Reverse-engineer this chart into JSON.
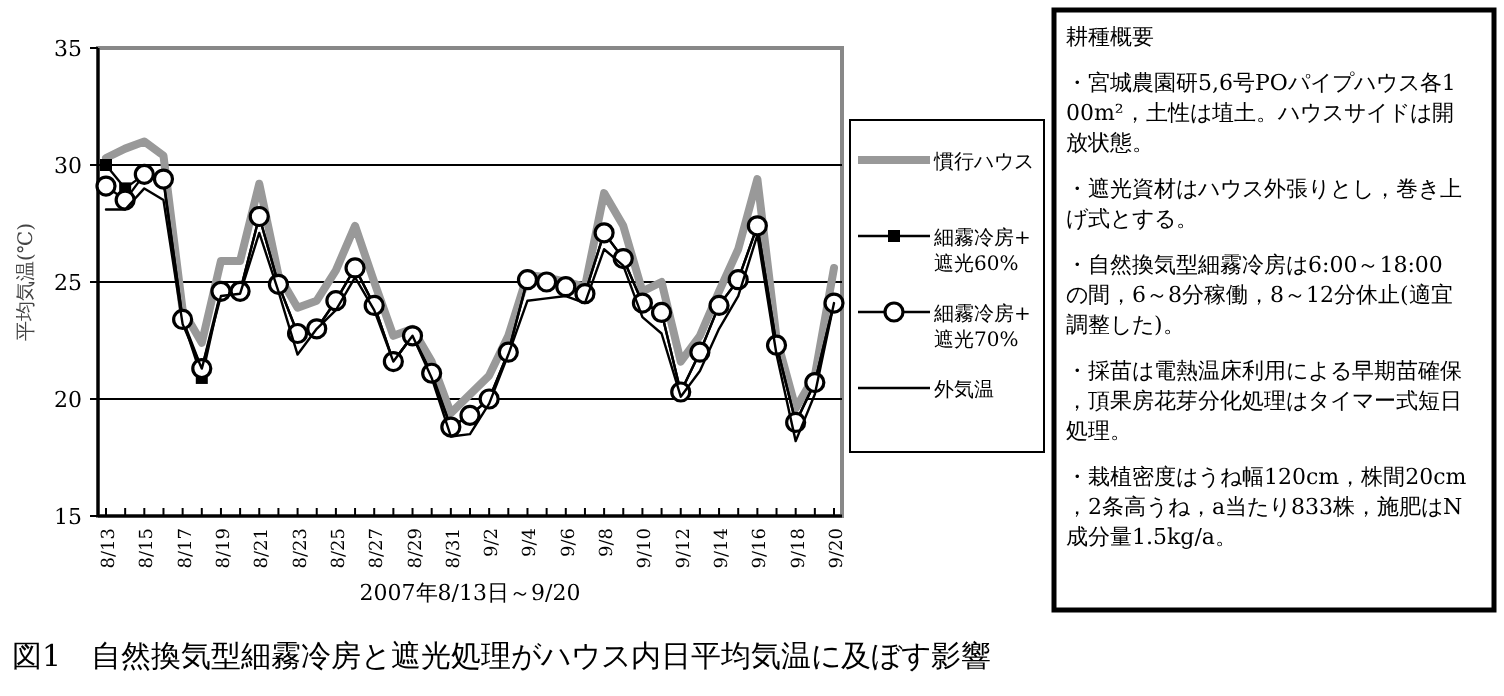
{
  "chart_data": {
    "type": "line",
    "title": "図1　自然換気型細霧冷房と遮光処理がハウス内日平均気温に及ぼす影響",
    "xlabel": "2007年8/13日～9/20",
    "ylabel": "平均気温(℃)",
    "categories": [
      "8/13",
      null,
      "8/15",
      null,
      "8/17",
      null,
      "8/19",
      null,
      "8/21",
      null,
      "8/23",
      null,
      "8/25",
      null,
      "8/27",
      null,
      "8/29",
      null,
      "8/31",
      null,
      "9/2",
      null,
      "9/4",
      null,
      "9/6",
      null,
      "9/8",
      null,
      "9/10",
      null,
      "9/12",
      null,
      "9/14",
      null,
      "9/16",
      null,
      "9/18",
      null,
      "9/20"
    ],
    "ylim": [
      15,
      35
    ],
    "yticks": [
      15,
      20,
      25,
      30,
      35
    ],
    "grid": "y",
    "legend": "right",
    "series": [
      {
        "name": "慣行ハウス",
        "color": "#999999",
        "marker": "none",
        "values": [
          30.3,
          30.7,
          31.0,
          30.4,
          23.8,
          22.4,
          25.9,
          25.9,
          29.2,
          25.3,
          23.9,
          24.2,
          25.5,
          27.4,
          25.0,
          22.7,
          23.0,
          21.6,
          19.4,
          20.2,
          21.0,
          22.7,
          25.3,
          25.2,
          25.0,
          24.8,
          28.8,
          27.4,
          24.6,
          25.0,
          21.6,
          22.7,
          24.6,
          26.4,
          29.4,
          22.6,
          19.6,
          21.0,
          25.6
        ]
      },
      {
        "name": "細霧冷房+遮光60%",
        "color": "#000000",
        "marker": "square",
        "values": [
          30.0,
          29.0,
          29.6,
          29.3,
          23.4,
          20.9,
          24.6,
          24.6,
          27.8,
          24.9,
          22.8,
          23.0,
          24.2,
          25.6,
          24.0,
          21.6,
          22.7,
          21.0,
          18.8,
          19.3,
          20.0,
          22.0,
          25.1,
          25.0,
          24.8,
          24.5,
          27.1,
          26.0,
          24.1,
          23.7,
          20.3,
          22.0,
          24.0,
          25.1,
          27.4,
          22.3,
          19.0,
          20.7,
          24.1
        ]
      },
      {
        "name": "細霧冷房+遮光70%",
        "color": "#000000",
        "marker": "circle",
        "values": [
          29.1,
          28.5,
          29.6,
          29.4,
          23.4,
          21.3,
          24.6,
          24.6,
          27.8,
          24.9,
          22.8,
          23.0,
          24.2,
          25.6,
          24.0,
          21.6,
          22.7,
          21.1,
          18.8,
          19.3,
          20.0,
          22.0,
          25.1,
          25.0,
          24.8,
          24.5,
          27.1,
          26.0,
          24.1,
          23.7,
          20.3,
          22.0,
          24.0,
          25.1,
          27.4,
          22.3,
          19.0,
          20.7,
          24.1
        ]
      },
      {
        "name": "外気温",
        "color": "#000000",
        "marker": "none",
        "values": [
          28.1,
          28.1,
          29.0,
          28.5,
          23.2,
          21.3,
          24.4,
          24.5,
          27.1,
          24.6,
          21.9,
          23.0,
          23.8,
          25.2,
          23.8,
          21.6,
          22.7,
          20.9,
          18.4,
          18.5,
          19.8,
          21.9,
          24.2,
          24.3,
          24.4,
          24.1,
          26.4,
          25.7,
          23.5,
          22.8,
          20.1,
          21.2,
          23.0,
          24.4,
          27.0,
          21.9,
          18.2,
          20.2,
          24.1
        ]
      }
    ],
    "annotations": [
      "耕種概要",
      "・宮城農園研5,6号POパイプハウス各100m²，土性は埴土。ハウスサイドは開放状態。",
      "・遮光資材はハウス外張りとし，巻き上げ式とする。",
      "・自然換気型細霧冷房は6:00～18:00の間，6～8分稼働，8～12分休止(適宜調整した)。",
      "・採苗は電熱温床利用による早期苗確保，頂果房花芽分化処理はタイマー式短日処理。",
      "・栽植密度はうね幅120cm，株間20cm，2条高うね，a当たり833株，施肥はN成分量1.5kg/a。"
    ]
  }
}
